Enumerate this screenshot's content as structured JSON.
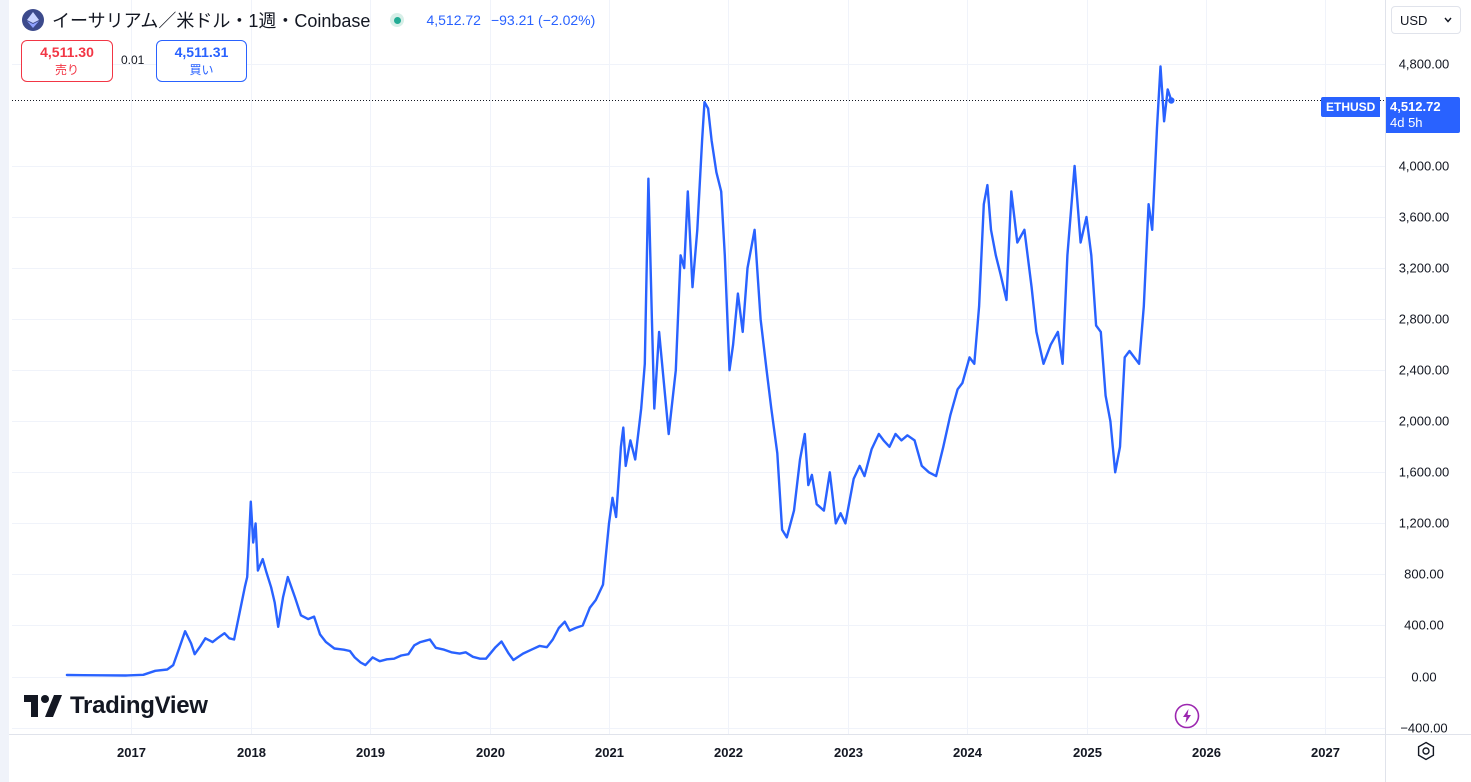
{
  "header": {
    "title": "イーサリアム／米ドル・1週・Coinbase",
    "last_price": "4,512.72",
    "change": "−93.21 (−2.02%)"
  },
  "trade": {
    "sell_price": "4,511.30",
    "sell_label": "売り",
    "spread": "0.01",
    "buy_price": "4,511.31",
    "buy_label": "買い"
  },
  "currency": {
    "selected": "USD"
  },
  "price_label": {
    "symbol": "ETHUSD",
    "price": "4,512.72",
    "countdown": "4d 5h"
  },
  "branding": {
    "logo_text": "TradingView"
  },
  "colors": {
    "line": "#2962ff",
    "accent": "#2962ff",
    "sell": "#f23645",
    "grid": "#f0f3fa"
  },
  "chart_data": {
    "type": "line",
    "series": [
      {
        "values": [
          [
            2016.46,
            12
          ],
          [
            2016.6,
            11
          ],
          [
            2016.75,
            10
          ],
          [
            2016.95,
            8
          ],
          [
            2017.1,
            14
          ],
          [
            2017.2,
            45
          ],
          [
            2017.3,
            55
          ],
          [
            2017.35,
            90
          ],
          [
            2017.4,
            220
          ],
          [
            2017.45,
            355
          ],
          [
            2017.5,
            260
          ],
          [
            2017.53,
            175
          ],
          [
            2017.58,
            240
          ],
          [
            2017.62,
            300
          ],
          [
            2017.68,
            270
          ],
          [
            2017.72,
            300
          ],
          [
            2017.78,
            340
          ],
          [
            2017.82,
            300
          ],
          [
            2017.86,
            290
          ],
          [
            2017.9,
            470
          ],
          [
            2017.95,
            700
          ],
          [
            2017.97,
            780
          ],
          [
            2018.0,
            1370
          ],
          [
            2018.02,
            1050
          ],
          [
            2018.04,
            1200
          ],
          [
            2018.06,
            830
          ],
          [
            2018.1,
            920
          ],
          [
            2018.13,
            820
          ],
          [
            2018.17,
            700
          ],
          [
            2018.2,
            580
          ],
          [
            2018.23,
            390
          ],
          [
            2018.27,
            620
          ],
          [
            2018.31,
            780
          ],
          [
            2018.34,
            700
          ],
          [
            2018.37,
            620
          ],
          [
            2018.42,
            480
          ],
          [
            2018.48,
            450
          ],
          [
            2018.53,
            470
          ],
          [
            2018.58,
            330
          ],
          [
            2018.63,
            270
          ],
          [
            2018.7,
            220
          ],
          [
            2018.78,
            210
          ],
          [
            2018.83,
            200
          ],
          [
            2018.87,
            150
          ],
          [
            2018.92,
            110
          ],
          [
            2018.96,
            90
          ],
          [
            2019.02,
            150
          ],
          [
            2019.08,
            120
          ],
          [
            2019.14,
            135
          ],
          [
            2019.2,
            140
          ],
          [
            2019.26,
            165
          ],
          [
            2019.32,
            175
          ],
          [
            2019.37,
            245
          ],
          [
            2019.42,
            270
          ],
          [
            2019.46,
            280
          ],
          [
            2019.5,
            290
          ],
          [
            2019.55,
            225
          ],
          [
            2019.62,
            210
          ],
          [
            2019.68,
            190
          ],
          [
            2019.75,
            180
          ],
          [
            2019.8,
            190
          ],
          [
            2019.86,
            155
          ],
          [
            2019.92,
            140
          ],
          [
            2019.97,
            140
          ],
          [
            2020.05,
            230
          ],
          [
            2020.1,
            275
          ],
          [
            2020.16,
            180
          ],
          [
            2020.2,
            130
          ],
          [
            2020.28,
            180
          ],
          [
            2020.35,
            210
          ],
          [
            2020.42,
            240
          ],
          [
            2020.48,
            230
          ],
          [
            2020.53,
            290
          ],
          [
            2020.58,
            380
          ],
          [
            2020.63,
            430
          ],
          [
            2020.67,
            360
          ],
          [
            2020.72,
            380
          ],
          [
            2020.78,
            400
          ],
          [
            2020.84,
            540
          ],
          [
            2020.89,
            600
          ],
          [
            2020.95,
            720
          ],
          [
            2021.0,
            1200
          ],
          [
            2021.03,
            1400
          ],
          [
            2021.06,
            1250
          ],
          [
            2021.1,
            1800
          ],
          [
            2021.12,
            1950
          ],
          [
            2021.14,
            1650
          ],
          [
            2021.18,
            1850
          ],
          [
            2021.22,
            1700
          ],
          [
            2021.27,
            2100
          ],
          [
            2021.3,
            2450
          ],
          [
            2021.33,
            3900
          ],
          [
            2021.36,
            2800
          ],
          [
            2021.38,
            2100
          ],
          [
            2021.42,
            2700
          ],
          [
            2021.46,
            2300
          ],
          [
            2021.5,
            1900
          ],
          [
            2021.56,
            2400
          ],
          [
            2021.6,
            3300
          ],
          [
            2021.63,
            3200
          ],
          [
            2021.66,
            3800
          ],
          [
            2021.7,
            3050
          ],
          [
            2021.74,
            3500
          ],
          [
            2021.78,
            4200
          ],
          [
            2021.8,
            4500
          ],
          [
            2021.83,
            4450
          ],
          [
            2021.86,
            4200
          ],
          [
            2021.9,
            3950
          ],
          [
            2021.94,
            3800
          ],
          [
            2021.97,
            3300
          ],
          [
            2022.01,
            2400
          ],
          [
            2022.04,
            2600
          ],
          [
            2022.08,
            3000
          ],
          [
            2022.12,
            2700
          ],
          [
            2022.16,
            3200
          ],
          [
            2022.22,
            3500
          ],
          [
            2022.27,
            2800
          ],
          [
            2022.32,
            2400
          ],
          [
            2022.36,
            2100
          ],
          [
            2022.41,
            1750
          ],
          [
            2022.45,
            1150
          ],
          [
            2022.49,
            1090
          ],
          [
            2022.55,
            1300
          ],
          [
            2022.6,
            1700
          ],
          [
            2022.64,
            1900
          ],
          [
            2022.67,
            1500
          ],
          [
            2022.7,
            1580
          ],
          [
            2022.74,
            1350
          ],
          [
            2022.8,
            1300
          ],
          [
            2022.85,
            1600
          ],
          [
            2022.9,
            1200
          ],
          [
            2022.94,
            1280
          ],
          [
            2022.98,
            1200
          ],
          [
            2023.05,
            1550
          ],
          [
            2023.1,
            1650
          ],
          [
            2023.14,
            1570
          ],
          [
            2023.2,
            1780
          ],
          [
            2023.26,
            1900
          ],
          [
            2023.3,
            1850
          ],
          [
            2023.35,
            1800
          ],
          [
            2023.4,
            1900
          ],
          [
            2023.45,
            1850
          ],
          [
            2023.5,
            1890
          ],
          [
            2023.56,
            1850
          ],
          [
            2023.62,
            1650
          ],
          [
            2023.68,
            1600
          ],
          [
            2023.74,
            1570
          ],
          [
            2023.8,
            1800
          ],
          [
            2023.86,
            2050
          ],
          [
            2023.92,
            2250
          ],
          [
            2023.96,
            2300
          ],
          [
            2024.02,
            2500
          ],
          [
            2024.06,
            2450
          ],
          [
            2024.1,
            2900
          ],
          [
            2024.14,
            3700
          ],
          [
            2024.17,
            3850
          ],
          [
            2024.2,
            3500
          ],
          [
            2024.24,
            3300
          ],
          [
            2024.28,
            3150
          ],
          [
            2024.33,
            2950
          ],
          [
            2024.37,
            3800
          ],
          [
            2024.42,
            3400
          ],
          [
            2024.48,
            3500
          ],
          [
            2024.54,
            3050
          ],
          [
            2024.58,
            2700
          ],
          [
            2024.64,
            2450
          ],
          [
            2024.7,
            2600
          ],
          [
            2024.76,
            2700
          ],
          [
            2024.8,
            2450
          ],
          [
            2024.84,
            3300
          ],
          [
            2024.9,
            4000
          ],
          [
            2024.95,
            3400
          ],
          [
            2025.0,
            3600
          ],
          [
            2025.04,
            3300
          ],
          [
            2025.08,
            2750
          ],
          [
            2025.12,
            2700
          ],
          [
            2025.16,
            2200
          ],
          [
            2025.2,
            2000
          ],
          [
            2025.24,
            1600
          ],
          [
            2025.28,
            1800
          ],
          [
            2025.32,
            2500
          ],
          [
            2025.36,
            2550
          ],
          [
            2025.4,
            2500
          ],
          [
            2025.44,
            2450
          ],
          [
            2025.48,
            2900
          ],
          [
            2025.52,
            3700
          ],
          [
            2025.55,
            3500
          ],
          [
            2025.59,
            4300
          ],
          [
            2025.62,
            4780
          ],
          [
            2025.65,
            4350
          ],
          [
            2025.68,
            4600
          ],
          [
            2025.71,
            4512.72
          ]
        ]
      }
    ],
    "x_ticks": [
      "2017",
      "2018",
      "2019",
      "2020",
      "2021",
      "2022",
      "2023",
      "2024",
      "2025",
      "2026",
      "2027"
    ],
    "y_ticks": [
      "4,800.00",
      "4,000.00",
      "3,600.00",
      "3,200.00",
      "2,800.00",
      "2,400.00",
      "2,000.00",
      "1,600.00",
      "1,200.00",
      "800.00",
      "400.00",
      "0.00",
      "−400.00"
    ],
    "xlim": [
      2016.0,
      2027.5
    ],
    "ylim": [
      -450,
      5300
    ],
    "last_value": 4512.72,
    "grid": true
  }
}
